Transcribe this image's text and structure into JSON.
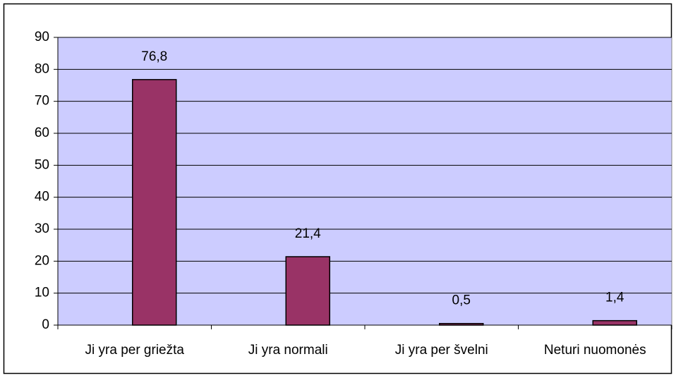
{
  "chart_data": {
    "type": "bar",
    "categories": [
      "Ji yra per griežta",
      "Ji yra normali",
      "Ji yra per švelni",
      "Neturi nuomonės"
    ],
    "values": [
      76.8,
      21.4,
      0.5,
      1.4
    ],
    "value_labels": [
      "76,8",
      "21,4",
      "0,5",
      "1,4"
    ],
    "color": "#993366",
    "ylim": [
      0,
      90
    ],
    "yticks": [
      0,
      10,
      20,
      30,
      40,
      50,
      60,
      70,
      80,
      90
    ],
    "grid": true
  }
}
